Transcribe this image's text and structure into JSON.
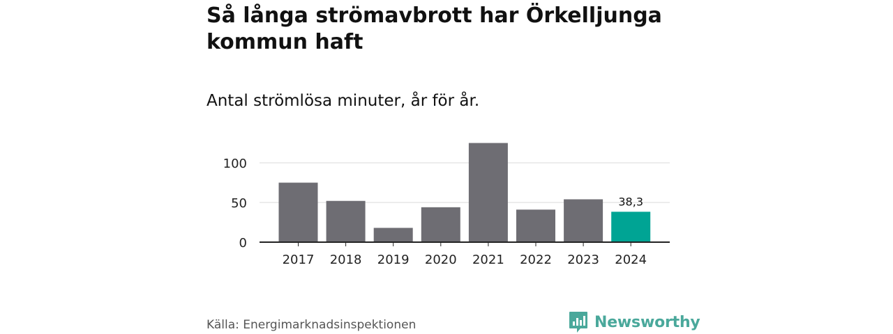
{
  "title": "Så långa strömavbrott har Örkelljunga kommun haft",
  "subtitle": "Antal strömlösa minuter, år för år.",
  "source": "Källa: Energimarknadsinspektionen",
  "brand": "Newsworthy",
  "colors": {
    "bar": "#6e6d73",
    "highlight": "#00a494",
    "grid": "#d9d9d9",
    "axis": "#222222",
    "brand": "#4aa89b"
  },
  "chart_data": {
    "type": "bar",
    "categories": [
      "2017",
      "2018",
      "2019",
      "2020",
      "2021",
      "2022",
      "2023",
      "2024"
    ],
    "values": [
      75,
      52,
      18,
      44,
      125,
      41,
      54,
      38.3
    ],
    "highlight_index": 7,
    "data_labels": [
      {
        "index": 7,
        "text": "38,3"
      }
    ],
    "yticks": [
      0,
      50,
      100
    ],
    "ytick_labels": [
      "0",
      "50",
      "100"
    ],
    "ylim": [
      0,
      130
    ],
    "title": "Så långa strömavbrott har Örkelljunga kommun haft",
    "subtitle": "Antal strömlösa minuter, år för år.",
    "xlabel": "",
    "ylabel": "",
    "grid": true
  }
}
